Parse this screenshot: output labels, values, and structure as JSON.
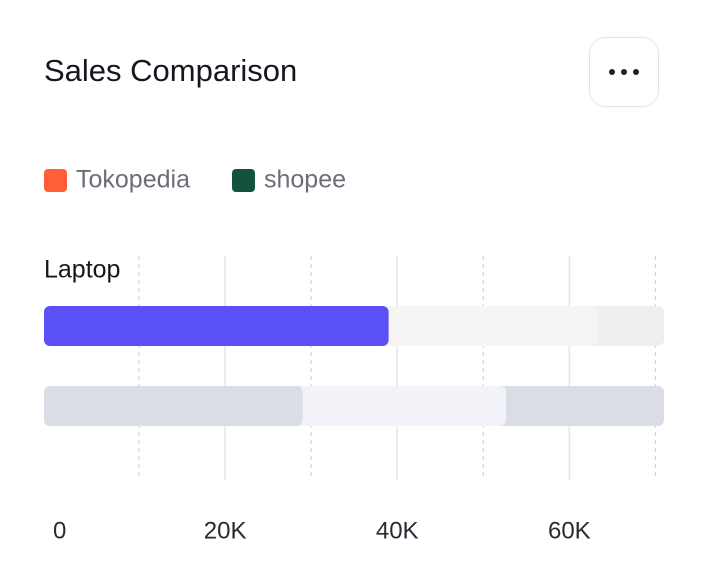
{
  "chart_data": {
    "type": "hbar",
    "title": "Sales Comparison",
    "categories": [
      "Laptop"
    ],
    "series": [
      {
        "name": "Tokopedia",
        "color": "#ff5f36",
        "bar_color": "#5b4ff6",
        "values": [
          39000
        ]
      },
      {
        "name": "shopee",
        "color": "#13533e",
        "bar_color": "#dadde5",
        "values": [
          29000
        ]
      }
    ],
    "xlim": [
      0,
      71000
    ],
    "xticks": [
      0,
      {
        "value": 20000,
        "label": "20K"
      },
      {
        "value": 40000,
        "label": "40K"
      },
      {
        "value": 60000,
        "label": "60K"
      }
    ],
    "minor_xticks": [
      10000,
      30000,
      50000,
      70000
    ],
    "grid": true
  }
}
